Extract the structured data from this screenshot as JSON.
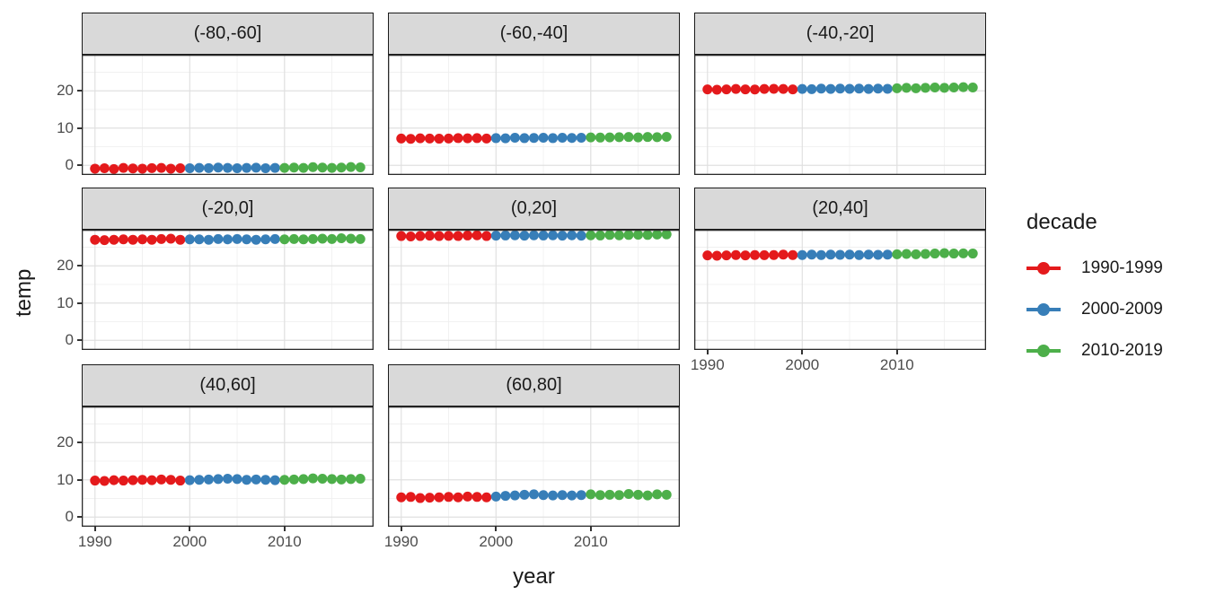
{
  "figure": {
    "x_axis_title": "year",
    "y_axis_title": "temp"
  },
  "legend": {
    "title": "decade",
    "items": [
      {
        "label": "1990-1999",
        "color": "#E41A1C"
      },
      {
        "label": "2000-2009",
        "color": "#377EB8"
      },
      {
        "label": "2010-2019",
        "color": "#4DAF4A"
      }
    ]
  },
  "chart_data": {
    "type": "scatter",
    "title": "",
    "xlabel": "year",
    "ylabel": "temp",
    "legend_title": "decade",
    "legend_position": "right",
    "grid": "major and minor horizontal+vertical gridlines, light grey on white",
    "facet_layout": "3 columns x 3 rows, 8 facets (latitude bands)",
    "x_ticks": [
      1990,
      2000,
      2010
    ],
    "y_ticks": [
      0,
      10,
      20
    ],
    "y_minor_ticks": [
      5,
      15,
      25
    ],
    "x_minor_ticks": [
      1995,
      2005,
      2015
    ],
    "xlim": [
      1988.6,
      2019.4
    ],
    "ylim": [
      -2.6,
      29.7
    ],
    "x": [
      1990,
      1991,
      1992,
      1993,
      1994,
      1995,
      1996,
      1997,
      1998,
      1999,
      2000,
      2001,
      2002,
      2003,
      2004,
      2005,
      2006,
      2007,
      2008,
      2009,
      2010,
      2011,
      2012,
      2013,
      2014,
      2015,
      2016,
      2017,
      2018
    ],
    "color_by": "decade",
    "facets": [
      {
        "label": "(-80,-60]",
        "values": [
          -0.9,
          -0.8,
          -1.0,
          -0.7,
          -0.85,
          -0.9,
          -0.75,
          -0.7,
          -0.9,
          -0.8,
          -0.8,
          -0.7,
          -0.75,
          -0.6,
          -0.7,
          -0.8,
          -0.7,
          -0.65,
          -0.8,
          -0.7,
          -0.7,
          -0.6,
          -0.7,
          -0.5,
          -0.6,
          -0.7,
          -0.6,
          -0.45,
          -0.55
        ]
      },
      {
        "label": "(-60,-40]",
        "values": [
          7.2,
          7.1,
          7.25,
          7.2,
          7.15,
          7.2,
          7.3,
          7.25,
          7.3,
          7.2,
          7.3,
          7.25,
          7.4,
          7.3,
          7.35,
          7.4,
          7.3,
          7.4,
          7.35,
          7.4,
          7.5,
          7.45,
          7.5,
          7.55,
          7.6,
          7.5,
          7.6,
          7.55,
          7.65
        ]
      },
      {
        "label": "(-40,-20]",
        "values": [
          20.4,
          20.3,
          20.4,
          20.5,
          20.4,
          20.35,
          20.5,
          20.55,
          20.5,
          20.4,
          20.5,
          20.45,
          20.6,
          20.5,
          20.6,
          20.55,
          20.6,
          20.5,
          20.6,
          20.55,
          20.7,
          20.8,
          20.7,
          20.8,
          20.9,
          20.8,
          20.9,
          21.0,
          20.9
        ]
      },
      {
        "label": "(-20,0]",
        "values": [
          27.0,
          26.9,
          27.0,
          27.1,
          27.0,
          27.1,
          27.0,
          27.2,
          27.3,
          27.0,
          27.1,
          27.1,
          27.0,
          27.2,
          27.1,
          27.2,
          27.1,
          27.0,
          27.1,
          27.2,
          27.1,
          27.2,
          27.1,
          27.2,
          27.3,
          27.2,
          27.4,
          27.3,
          27.2
        ]
      },
      {
        "label": "(0,20]",
        "values": [
          28.0,
          27.9,
          28.0,
          28.1,
          28.0,
          28.05,
          28.0,
          28.15,
          28.2,
          28.0,
          28.1,
          28.15,
          28.2,
          28.1,
          28.2,
          28.15,
          28.2,
          28.1,
          28.2,
          28.1,
          28.2,
          28.15,
          28.3,
          28.2,
          28.3,
          28.35,
          28.3,
          28.4,
          28.45
        ]
      },
      {
        "label": "(20,40]",
        "values": [
          22.8,
          22.7,
          22.8,
          22.9,
          22.8,
          22.9,
          22.85,
          22.9,
          23.0,
          22.9,
          22.9,
          23.0,
          22.9,
          23.0,
          22.95,
          23.0,
          22.9,
          23.0,
          22.95,
          23.0,
          23.1,
          23.2,
          23.1,
          23.2,
          23.3,
          23.4,
          23.3,
          23.35,
          23.3
        ]
      },
      {
        "label": "(40,60]",
        "values": [
          9.8,
          9.7,
          9.9,
          9.8,
          9.9,
          10.0,
          9.9,
          10.1,
          10.0,
          9.8,
          9.9,
          10.0,
          10.1,
          10.2,
          10.3,
          10.2,
          10.0,
          10.1,
          10.0,
          9.9,
          10.0,
          10.1,
          10.2,
          10.4,
          10.3,
          10.2,
          10.1,
          10.2,
          10.3
        ]
      },
      {
        "label": "(60,80]",
        "values": [
          5.3,
          5.4,
          5.1,
          5.2,
          5.3,
          5.4,
          5.3,
          5.5,
          5.4,
          5.3,
          5.5,
          5.7,
          5.8,
          6.0,
          6.1,
          5.9,
          5.8,
          5.9,
          5.8,
          5.9,
          6.1,
          5.9,
          6.0,
          5.9,
          6.2,
          6.0,
          5.8,
          6.1,
          6.0
        ]
      }
    ]
  },
  "theme": {
    "strip_fill": "#D9D9D9",
    "strip_border": "#1A1A1A",
    "panel_border": "#2B2B2B",
    "grid_major": "#E0E0E0",
    "grid_minor": "#F0F0F0",
    "tick_label_color": "#4D4D4D",
    "text_color": "#1A1A1A",
    "background": "#FFFFFF"
  }
}
